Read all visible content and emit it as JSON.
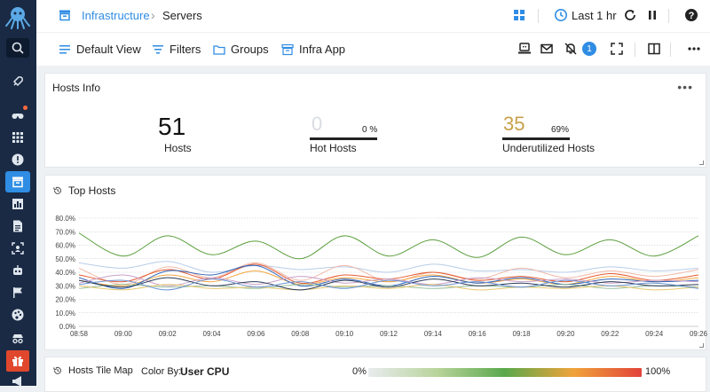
{
  "sidebar": {
    "items": [
      {
        "name": "search-icon"
      },
      {
        "name": "rocket-icon"
      },
      {
        "name": "binoculars-icon"
      },
      {
        "name": "grid-icon"
      },
      {
        "name": "alert-icon"
      },
      {
        "name": "infrastructure-icon"
      },
      {
        "name": "chart-icon"
      },
      {
        "name": "document-icon"
      },
      {
        "name": "scan-icon"
      },
      {
        "name": "robot-icon"
      },
      {
        "name": "flag-icon"
      },
      {
        "name": "palette-icon"
      },
      {
        "name": "spy-icon"
      },
      {
        "name": "gift-icon"
      },
      {
        "name": "megaphone-icon"
      }
    ]
  },
  "header": {
    "breadcrumb_root": "Infrastructure",
    "breadcrumb_sep": "›",
    "breadcrumb_current": "Servers",
    "time_range": "Last 1 hr"
  },
  "toolbar": {
    "default_view": "Default View",
    "filters": "Filters",
    "groups": "Groups",
    "infra_app": "Infra App",
    "notification_count": "1"
  },
  "hosts_info": {
    "title": "Hosts Info",
    "more": "•••",
    "hosts_value": "51",
    "hosts_label": "Hosts",
    "hot_value": "0",
    "hot_pct": "0 %",
    "hot_label": "Hot Hosts",
    "hot_fraction": 0,
    "under_value": "35",
    "under_pct": "69%",
    "under_label": "Underutilized Hosts",
    "under_fraction": 0.69,
    "colors": {
      "hot_value": "#d9dce0",
      "under_value": "#c8a04a"
    }
  },
  "top_hosts": {
    "title": "Top Hosts"
  },
  "tile_map": {
    "title": "Hosts Tile Map",
    "color_by_label": "Color By:",
    "color_by_value": "User CPU",
    "min_label": "0%",
    "max_label": "100%"
  },
  "chart_data": {
    "type": "line",
    "x": [
      "08:58",
      "09:00",
      "09:02",
      "09:04",
      "09:06",
      "09:08",
      "09:10",
      "09:12",
      "09:14",
      "09:16",
      "09:18",
      "09:20",
      "09:22",
      "09:24",
      "09:26"
    ],
    "yticks": [
      "0.0%",
      "10.0%",
      "20.0%",
      "30.0%",
      "40.0%",
      "50.0%",
      "60.0%",
      "70.0%",
      "80.0%"
    ],
    "ylim": [
      0,
      80
    ],
    "grid": true,
    "series": [
      {
        "color": "#5a9e3c",
        "values": [
          69,
          52,
          67,
          53,
          63,
          50,
          67,
          52,
          64,
          51,
          66,
          53,
          64,
          52,
          67
        ]
      },
      {
        "color": "#b7cde8",
        "values": [
          47,
          43,
          48,
          40,
          45,
          42,
          44,
          40,
          46,
          41,
          42,
          40,
          44,
          41,
          43
        ]
      },
      {
        "color": "#f0b8a8",
        "values": [
          43,
          31,
          44,
          36,
          47,
          34,
          45,
          33,
          40,
          35,
          43,
          36,
          41,
          37,
          42
        ]
      },
      {
        "color": "#e65a2e",
        "values": [
          38,
          33,
          42,
          35,
          46,
          32,
          38,
          35,
          40,
          34,
          37,
          33,
          39,
          34,
          38
        ]
      },
      {
        "color": "#f4a640",
        "values": [
          34,
          30,
          38,
          33,
          41,
          31,
          36,
          33,
          38,
          32,
          35,
          31,
          37,
          33,
          36
        ]
      },
      {
        "color": "#2e63b8",
        "values": [
          36,
          28,
          41,
          38,
          45,
          30,
          35,
          30,
          37,
          32,
          36,
          31,
          35,
          33,
          34
        ]
      },
      {
        "color": "#c9a0c8",
        "values": [
          32,
          38,
          30,
          36,
          31,
          37,
          32,
          35,
          31,
          36,
          33,
          35,
          32,
          34,
          33
        ]
      },
      {
        "color": "#9cc2a0",
        "values": [
          28,
          31,
          29,
          30,
          28,
          31,
          29,
          30,
          28,
          30,
          29,
          31,
          28,
          30,
          29
        ]
      },
      {
        "color": "#e6c86e",
        "values": [
          30,
          27,
          31,
          28,
          29,
          27,
          30,
          28,
          31,
          27,
          29,
          28,
          30,
          27,
          29
        ]
      },
      {
        "color": "#2a3a55",
        "values": [
          34,
          29,
          36,
          30,
          33,
          27,
          34,
          29,
          35,
          30,
          32,
          29,
          33,
          30,
          31
        ]
      },
      {
        "color": "#6a93d4",
        "values": [
          31,
          34,
          27,
          35,
          29,
          33,
          28,
          34,
          30,
          33,
          29,
          34,
          30,
          32,
          28
        ]
      }
    ]
  }
}
